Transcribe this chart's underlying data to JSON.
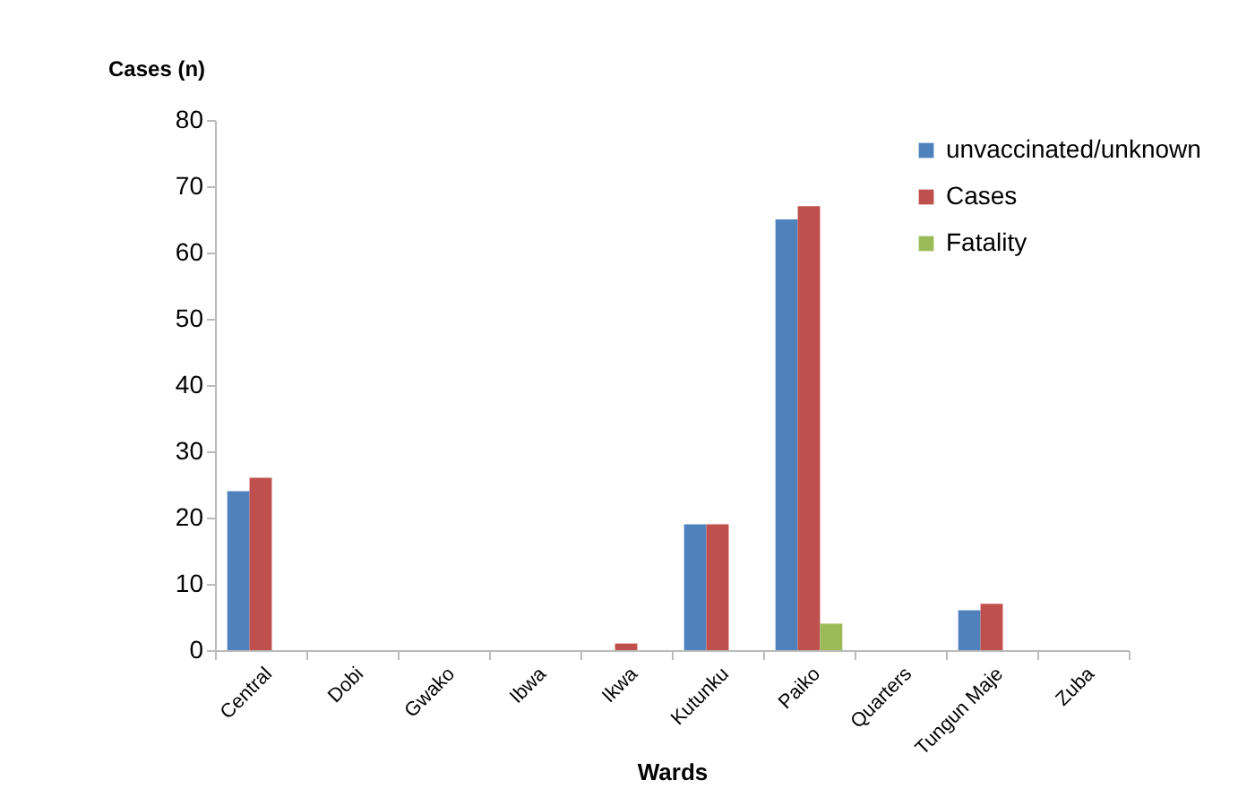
{
  "chart_data": {
    "type": "bar",
    "xlabel": "Wards",
    "ylabel": "Cases (n)",
    "categories": [
      "Central",
      "Dobi",
      "Gwako",
      "Ibwa",
      "Ikwa",
      "Kutunku",
      "Paiko",
      "Quarters",
      "Tungun Maje",
      "Zuba"
    ],
    "series": [
      {
        "name": "unvaccinated/unknown",
        "color": "#4f81bd",
        "values": [
          24,
          0,
          0,
          0,
          0,
          19,
          65,
          0,
          6,
          0
        ]
      },
      {
        "name": "Cases",
        "color": "#c0504d",
        "values": [
          26,
          0,
          0,
          0,
          1,
          19,
          67,
          0,
          7,
          0
        ]
      },
      {
        "name": "Fatality",
        "color": "#9bbb59",
        "values": [
          0,
          0,
          0,
          0,
          0,
          0,
          4,
          0,
          0,
          0
        ]
      }
    ],
    "ylim": [
      0,
      80
    ],
    "yticks": [
      0,
      10,
      20,
      30,
      40,
      50,
      60,
      70,
      80
    ],
    "grid": false,
    "legend": "right"
  }
}
